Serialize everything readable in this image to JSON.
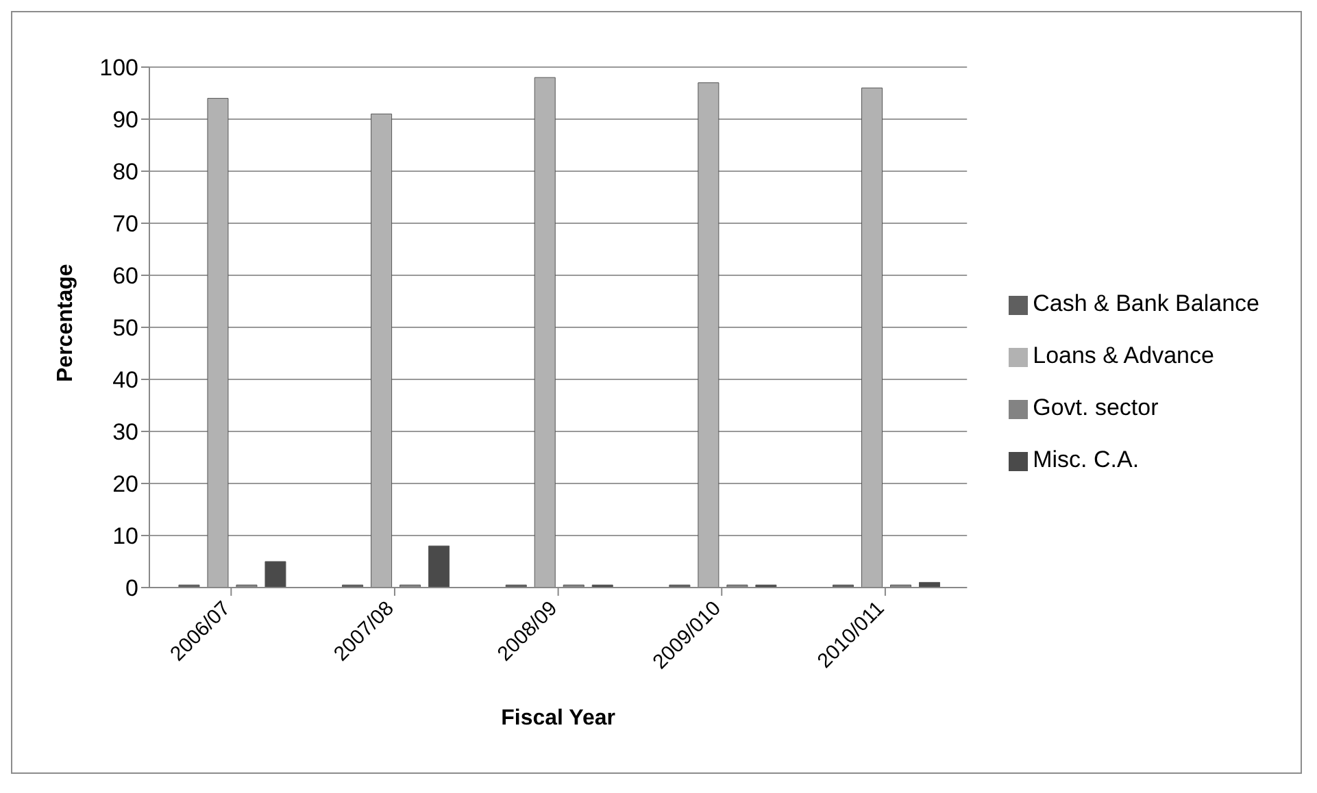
{
  "chart_data": {
    "type": "bar",
    "xlabel": "Fiscal Year",
    "ylabel": "Percentage",
    "categories": [
      "2006/07",
      "2007/08",
      "2008/09",
      "2009/010",
      "2010/011"
    ],
    "series": [
      {
        "name": "Cash & Bank Balance",
        "color": "#5f5f5f",
        "values": [
          0.5,
          0.5,
          0.5,
          0.5,
          0.5
        ]
      },
      {
        "name": "Loans & Advance",
        "color": "#b2b2b2",
        "values": [
          94,
          91,
          98,
          97,
          96
        ]
      },
      {
        "name": "Govt. sector",
        "color": "#838383",
        "values": [
          0.5,
          0.5,
          0.5,
          0.5,
          0.5
        ]
      },
      {
        "name": "Misc. C.A.",
        "color": "#4a4a4a",
        "values": [
          5,
          8,
          0.5,
          0.5,
          1
        ]
      }
    ],
    "ylim": [
      0,
      100
    ],
    "yticks": [
      0,
      10,
      20,
      30,
      40,
      50,
      60,
      70,
      80,
      90,
      100
    ],
    "grid": "y",
    "legend": "right"
  }
}
